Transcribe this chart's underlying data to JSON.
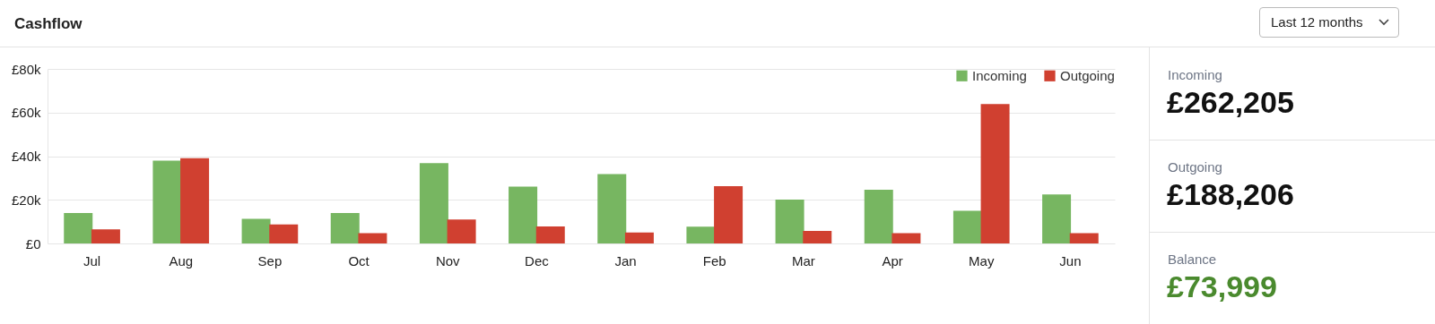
{
  "chart_data": {
    "type": "bar",
    "title": "Cashflow",
    "categories": [
      "Jul",
      "Aug",
      "Sep",
      "Oct",
      "Nov",
      "Dec",
      "Jan",
      "Feb",
      "Mar",
      "Apr",
      "May",
      "Jun"
    ],
    "series": [
      {
        "name": "Incoming",
        "color": "#77b661",
        "values": [
          14000,
          37900,
          11300,
          14000,
          36800,
          26100,
          31800,
          7700,
          20100,
          24600,
          15000,
          22500
        ]
      },
      {
        "name": "Outgoing",
        "color": "#d04030",
        "values": [
          6500,
          39100,
          8700,
          4700,
          11000,
          7800,
          5000,
          26300,
          5700,
          4700,
          63900,
          4700
        ]
      }
    ],
    "ylim": [
      0,
      80000
    ],
    "yticks": [
      {
        "value": 0,
        "label": "£0"
      },
      {
        "value": 20000,
        "label": "£20k"
      },
      {
        "value": 40000,
        "label": "£40k"
      },
      {
        "value": 60000,
        "label": "£60k"
      },
      {
        "value": 80000,
        "label": "£80k"
      }
    ],
    "grid": "y",
    "legend": "top right",
    "annotations": [
      "Last 12 months",
      "Incoming",
      "£262,205",
      "Outgoing",
      "£188,206",
      "Balance",
      "£73,999"
    ]
  }
}
